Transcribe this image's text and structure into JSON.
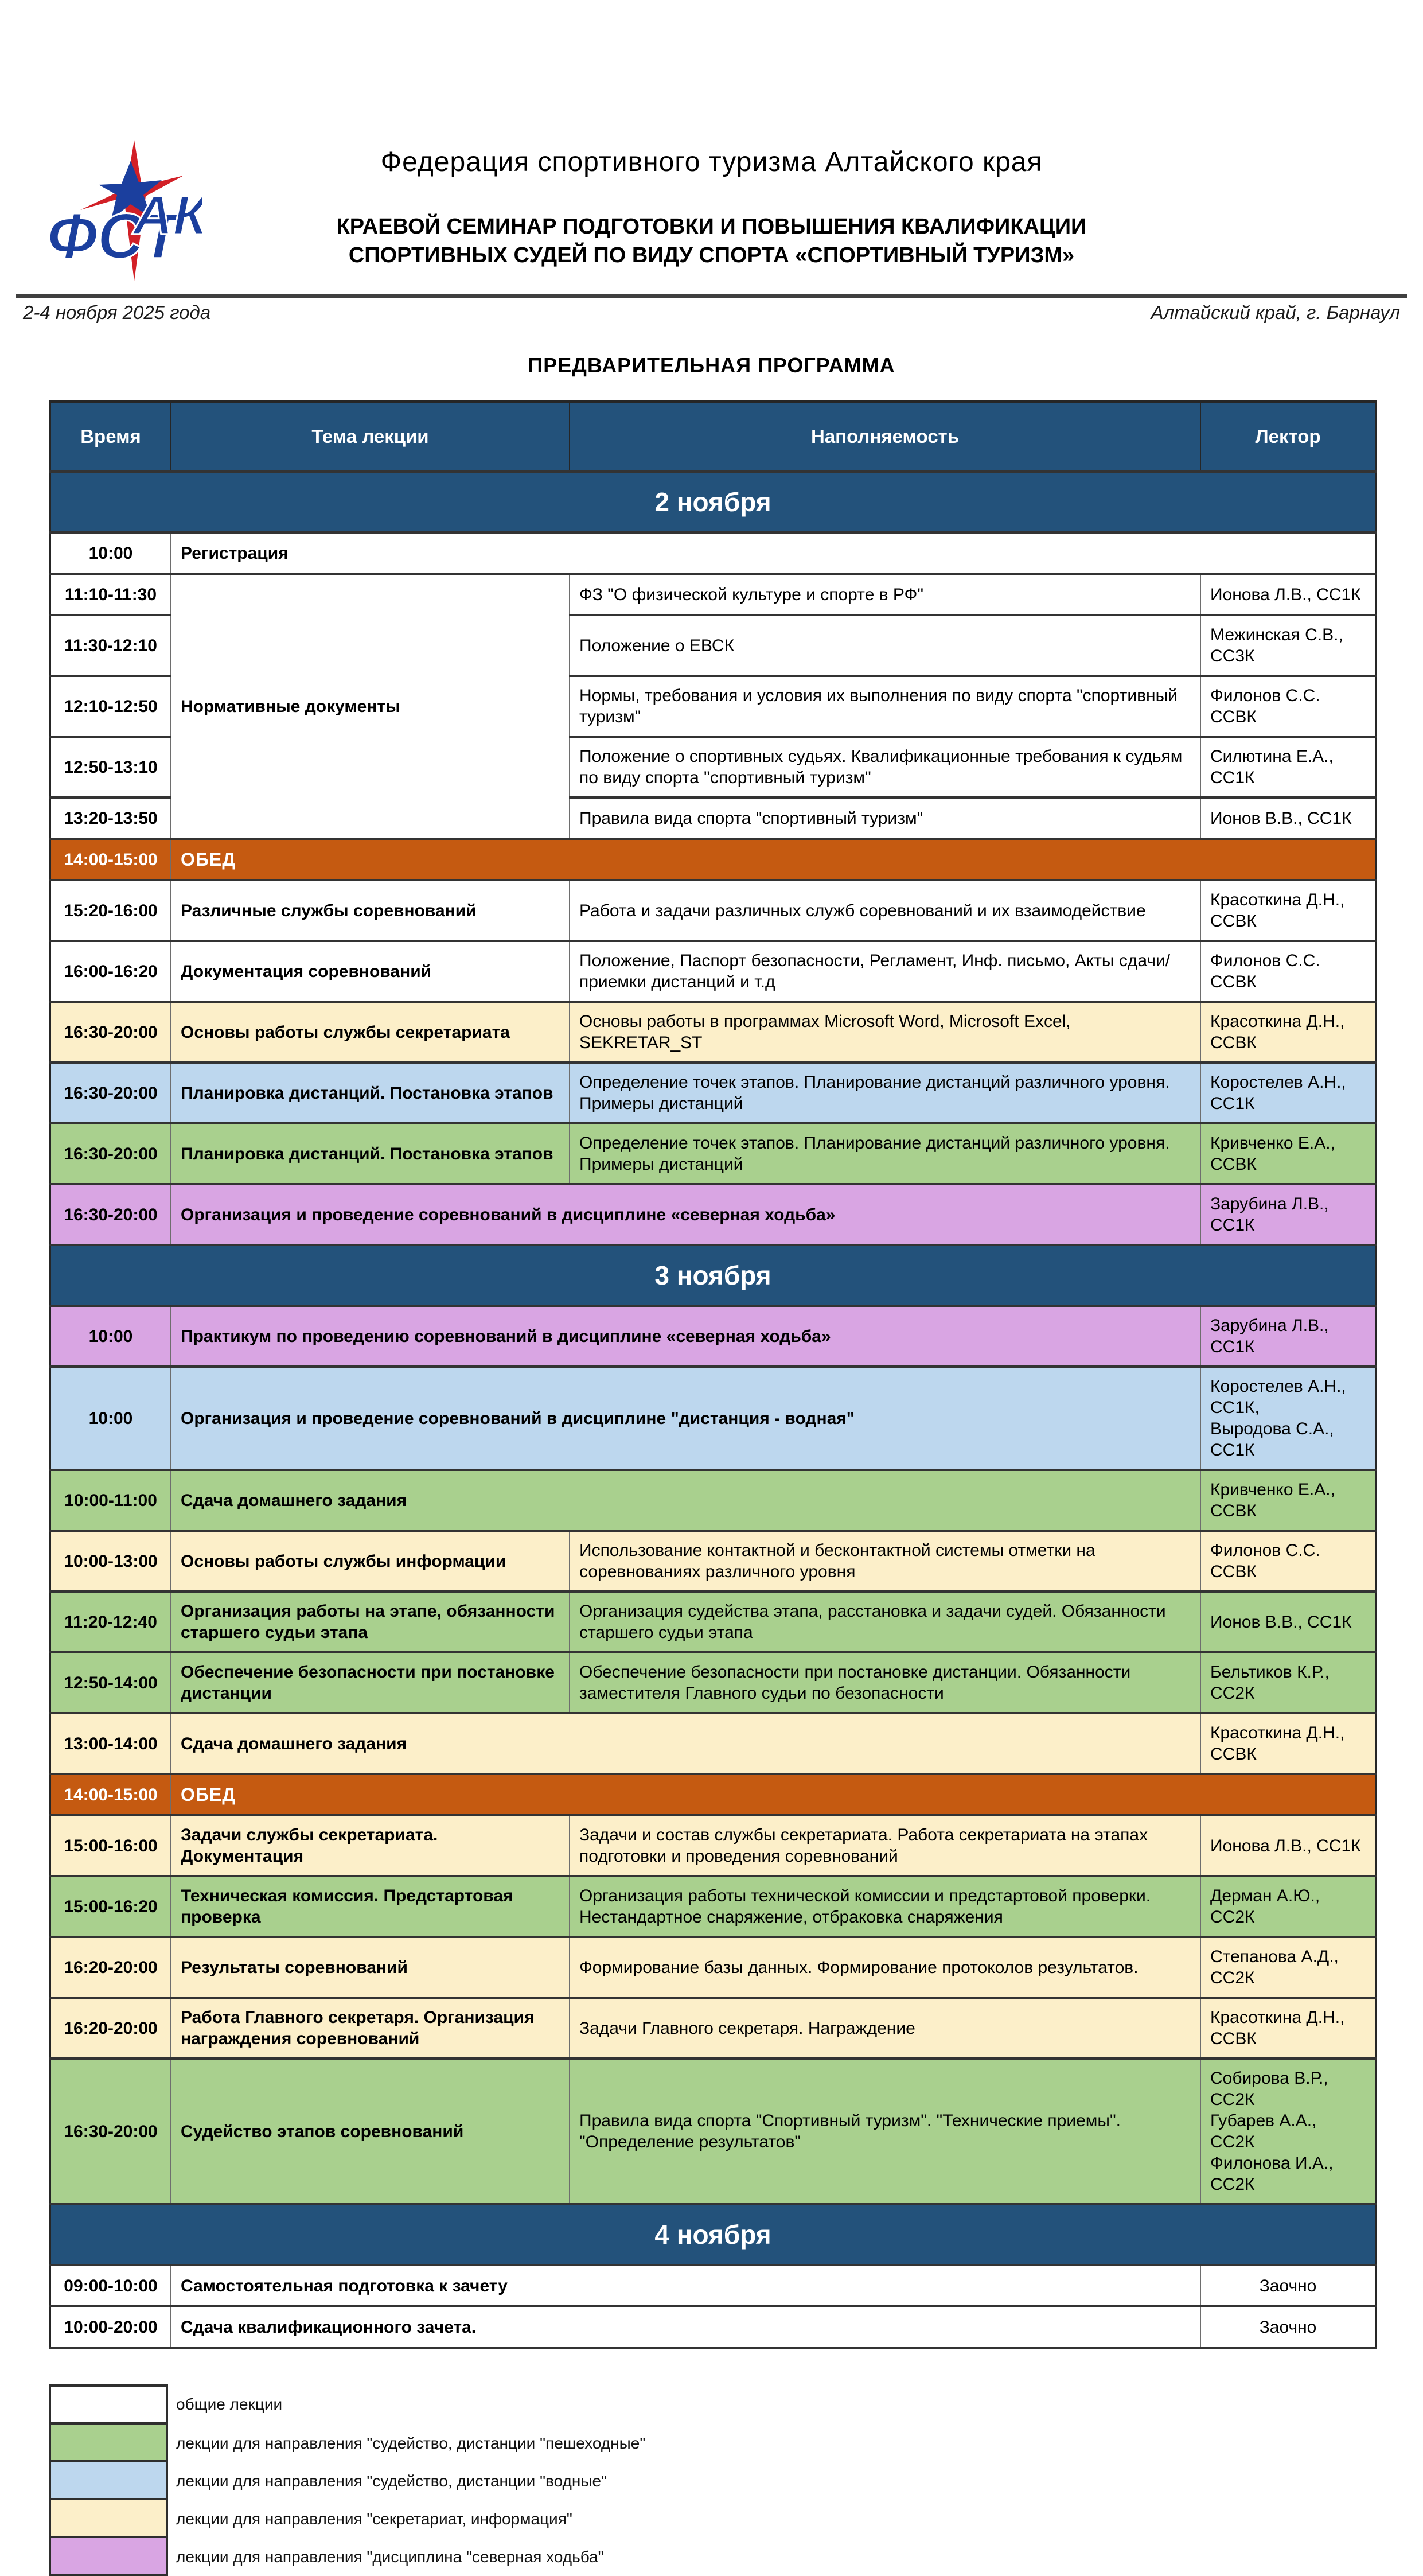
{
  "header": {
    "org_name": "Федерация спортивного туризма Алтайского края",
    "seminar_title_line1": "КРАЕВОЙ СЕМИНАР ПОДГОТОВКИ И ПОВЫШЕНИЯ КВАЛИФИКАЦИИ",
    "seminar_title_line2": "СПОРТИВНЫХ СУДЕЙ ПО ВИДУ СПОРТА «СПОРТИВНЫЙ ТУРИЗМ»",
    "event_date": "2-4 ноября 2025 года",
    "event_location": "Алтайский край, г. Барнаул",
    "logo_text_left": "ФСТ",
    "logo_text_right": "АК"
  },
  "program_title": "ПРЕДВАРИТЕЛЬНАЯ ПРОГРАММА",
  "colors": {
    "navy": "#23527B",
    "orange": "#C55A11",
    "green": "#A9D08E",
    "blue": "#BDD7EE",
    "cream": "#FCEFC9",
    "purple": "#D9A5E3",
    "logo_blue": "#1B3F9E",
    "logo_red": "#D22027"
  },
  "table": {
    "columns": [
      "Время",
      "Тема лекции",
      "Наполняемость",
      "Лектор"
    ],
    "sections": [
      {
        "title": "2 ноября",
        "rows": [
          {
            "time": "10:00",
            "topic": "Регистрация",
            "layout": "full",
            "type": "white"
          },
          {
            "time": "11:10-11:30",
            "topic": "Нормативные документы",
            "rowspan": 5,
            "layout": "group-start",
            "content": "ФЗ \"О физической культуре и спорте в РФ\"",
            "lecturer": "Ионова Л.В., СС1К",
            "type": "white"
          },
          {
            "time": "11:30-12:10",
            "layout": "group-child",
            "content": "Положение о ЕВСК",
            "lecturer": "Межинская С.В., СС3К",
            "type": "white"
          },
          {
            "time": "12:10-12:50",
            "layout": "group-child",
            "content": "Нормы, требования и условия их выполнения по виду спорта \"спортивный туризм\"",
            "lecturer": "Филонов С.С. ССВК",
            "type": "white"
          },
          {
            "time": "12:50-13:10",
            "layout": "group-child",
            "content": "Положение о спортивных судьях. Квалификационные требования к судьям по виду спорта \"спортивный туризм\"",
            "lecturer": "Силютина Е.А., СС1К",
            "type": "white"
          },
          {
            "time": "13:20-13:50",
            "layout": "group-child",
            "content": "Правила вида спорта \"спортивный туризм\"",
            "lecturer": "Ионов В.В., СС1К",
            "type": "white"
          },
          {
            "time": "14:00-15:00",
            "topic": "ОБЕД",
            "layout": "lunch",
            "type": "lunch"
          },
          {
            "time": "15:20-16:00",
            "topic": "Различные службы соревнований",
            "content": "Работа и задачи различных служб соревнований и их взаимодействие",
            "lecturer": "Красоткина Д.Н., ССВК",
            "layout": "normal",
            "type": "white"
          },
          {
            "time": "16:00-16:20",
            "topic": "Документация соревнований",
            "content": "Положение, Паспорт безопасности, Регламент, Инф. письмо, Акты сдачи/приемки дистанций и т.д",
            "lecturer": "Филонов С.С. ССВК",
            "layout": "normal",
            "type": "white"
          },
          {
            "time": "16:30-20:00",
            "topic": "Основы работы службы секретариата",
            "content": "Основы работы в программах Microsoft Word, Microsoft Excel, SEKRETAR_ST",
            "lecturer": "Красоткина Д.Н., ССВК",
            "layout": "normal",
            "type": "cream"
          },
          {
            "time": "16:30-20:00",
            "topic": "Планировка дистанций. Постановка этапов",
            "content": "Определение точек этапов. Планирование дистанций различного уровня. Примеры  дистанций",
            "lecturer": "Коростелев А.Н., СС1К",
            "layout": "normal",
            "type": "blue"
          },
          {
            "time": "16:30-20:00",
            "topic": "Планировка дистанций. Постановка этапов",
            "content": "Определение точек этапов. Планирование дистанций различного уровня. Примеры  дистанций",
            "lecturer": "Кривченко Е.А., ССВК",
            "layout": "normal",
            "type": "green"
          },
          {
            "time": "16:30-20:00",
            "topic": "Организация и проведение соревнований в дисциплине «северная ходьба»",
            "lecturer": "Зарубина Л.В., СС1К",
            "layout": "merged",
            "type": "purple"
          }
        ]
      },
      {
        "title": "3 ноября",
        "rows": [
          {
            "time": "10:00",
            "topic": "Практикум по проведению соревнований в дисциплине «северная ходьба»",
            "lecturer": "Зарубина Л.В., СС1К",
            "layout": "merged",
            "type": "purple"
          },
          {
            "time": "10:00",
            "topic": "Организация и проведение соревнований в дисциплине \"дистанция - водная\"",
            "lecturer": "Коростелев А.Н., СС1К,\nВыродова С.А., СС1К",
            "layout": "merged",
            "type": "blue"
          },
          {
            "time": "10:00-11:00",
            "topic": "Сдача домашнего задания",
            "lecturer": "Кривченко Е.А., ССВК",
            "layout": "merged",
            "type": "green"
          },
          {
            "time": "10:00-13:00",
            "topic": "Основы работы службы информации",
            "content": "Использование контактной и бесконтактной системы отметки на соревнованиях различного уровня",
            "lecturer": "Филонов С.С. ССВК",
            "layout": "normal",
            "type": "cream"
          },
          {
            "time": "11:20-12:40",
            "topic": "Организация работы на этапе, обязанности старшего судьи этапа",
            "content": "Организация судейства этапа, расстановка и задачи судей. Обязанности старшего судьи этапа",
            "lecturer": "Ионов В.В., СС1К",
            "layout": "normal",
            "type": "green"
          },
          {
            "time": "12:50-14:00",
            "topic": "Обеспечение безопасности при постановке дистанции",
            "content": "Обеспечение безопасности при постановке дистанции. Обязанности заместителя Главного судьи по безопасности",
            "lecturer": "Бельтиков К.Р., СС2К",
            "layout": "normal",
            "type": "green"
          },
          {
            "time": "13:00-14:00",
            "topic": "Сдача домашнего задания",
            "lecturer": "Красоткина Д.Н., ССВК",
            "layout": "merged",
            "type": "cream"
          },
          {
            "time": "14:00-15:00",
            "topic": "ОБЕД",
            "layout": "lunch",
            "type": "lunch"
          },
          {
            "time": "15:00-16:00",
            "topic": "Задачи службы секретариата. Документация",
            "content": "Задачи и состав службы секретариата. Работа секретариата на этапах подготовки и проведения соревнований",
            "lecturer": "Ионова Л.В., СС1К",
            "layout": "normal",
            "type": "cream"
          },
          {
            "time": "15:00-16:20",
            "topic": "Техническая комиссия. Предстартовая проверка",
            "content": "Организация работы технической комиссии и предстартовой проверки. Нестандартное снаряжение, отбраковка снаряжения",
            "lecturer": "Дерман А.Ю., СС2К",
            "layout": "normal",
            "type": "green"
          },
          {
            "time": "16:20-20:00",
            "topic": "Результаты соревнований",
            "content": "Формирование базы данных. Формирование протоколов результатов.",
            "lecturer": "Степанова А.Д., СС2К",
            "layout": "normal",
            "type": "cream"
          },
          {
            "time": "16:20-20:00",
            "topic": "Работа Главного секретаря. Организация награждения соревнований",
            "content": "Задачи Главного секретаря. Награждение",
            "lecturer": "Красоткина Д.Н., ССВК",
            "layout": "normal",
            "type": "cream"
          },
          {
            "time": "16:30-20:00",
            "topic": "Судейство этапов соревнований",
            "content": "Правила вида спорта \"Спортивный туризм\". \"Технические приемы\". \"Определение результатов\"",
            "lecturer": "Собирова В.Р., СС2К\nГубарев А.А., СС2К\nФилонова И.А., СС2К",
            "layout": "normal",
            "type": "green"
          }
        ]
      },
      {
        "title": "4 ноября",
        "rows": [
          {
            "time": "09:00-10:00",
            "topic": "Самостоятельная подготовка к зачету",
            "lecturer": "Заочно",
            "lecturer_center": true,
            "lecturer_plain": true,
            "layout": "merged",
            "type": "white"
          },
          {
            "time": "10:00-20:00",
            "topic": "Сдача квалификационного зачета.",
            "lecturer": "Заочно",
            "lecturer_center": true,
            "lecturer_plain": true,
            "layout": "merged",
            "type": "white"
          }
        ]
      }
    ]
  },
  "legend": [
    {
      "color_key": "white",
      "label": "общие лекции"
    },
    {
      "color_key": "green",
      "label": "лекции для направления \"судейство, дистанции \"пешеходные\""
    },
    {
      "color_key": "blue",
      "label": "лекции для направления \"судейство, дистанции \"водные\""
    },
    {
      "color_key": "cream",
      "label": "лекции для направления \"секретариат, информация\""
    },
    {
      "color_key": "purple",
      "label": "лекции для направления \"дисциплина \"северная ходьба\""
    }
  ]
}
